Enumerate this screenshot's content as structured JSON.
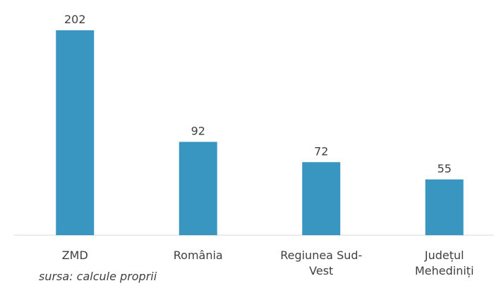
{
  "chart_data": {
    "type": "bar",
    "categories": [
      "ZMD",
      "România",
      "Regiunea Sud-Vest",
      "Județul Mehediniți"
    ],
    "values": [
      202,
      92,
      72,
      55
    ],
    "color": "#3896c0",
    "source": "sursa: calcule proprii"
  }
}
